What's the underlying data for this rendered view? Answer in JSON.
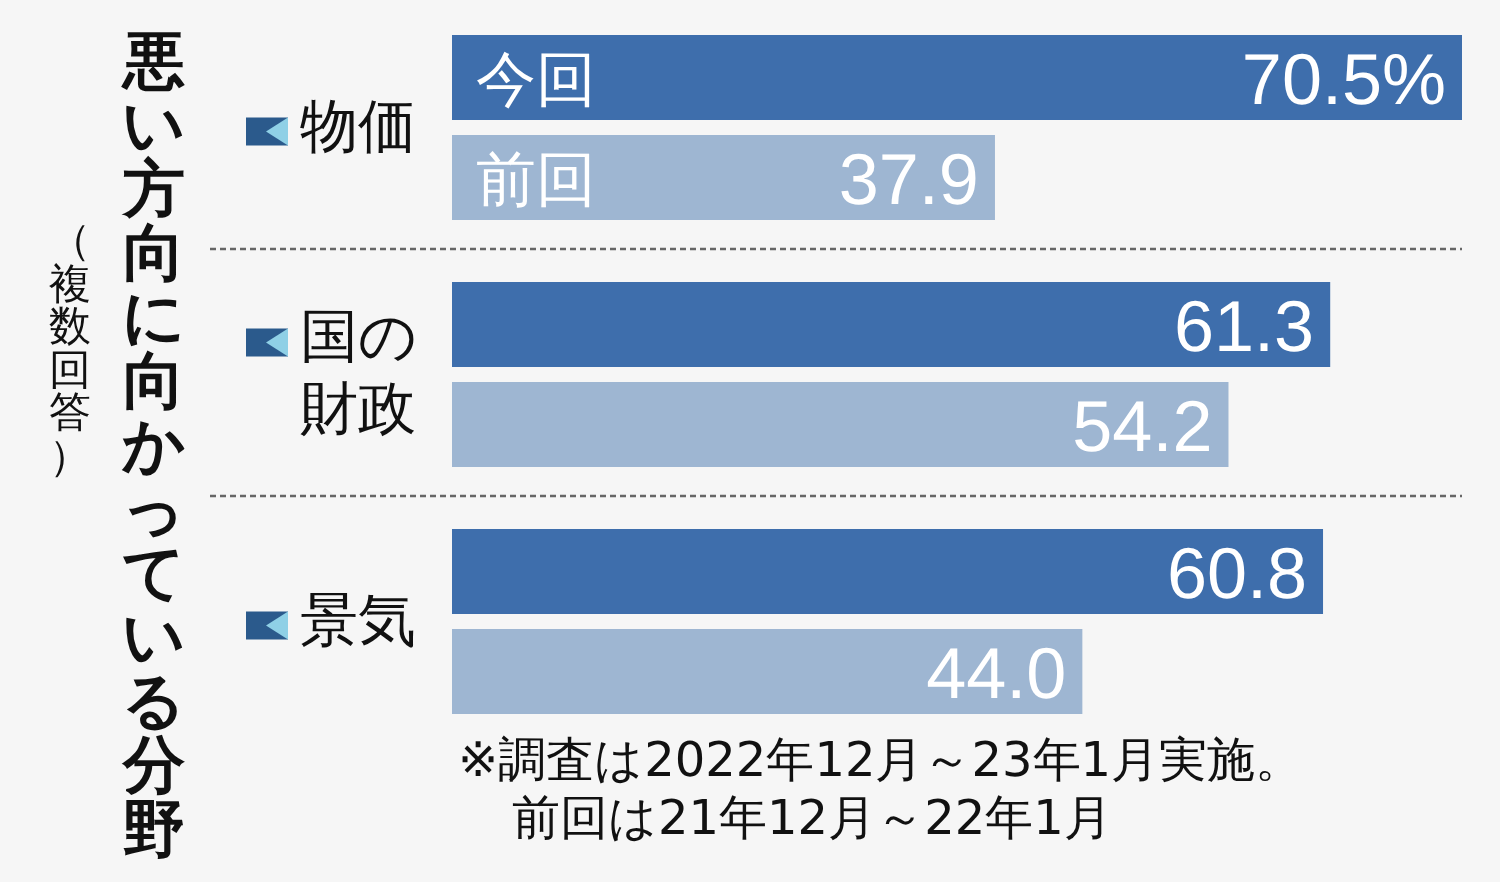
{
  "chart_data": {
    "type": "bar",
    "orientation": "horizontal",
    "title": "悪い方向に向かっている分野",
    "subtitle": "（複数回答）",
    "categories": [
      "物価",
      "国の財政",
      "景気"
    ],
    "series": [
      {
        "name": "今回",
        "color": "#3e6eac",
        "values": [
          70.5,
          61.3,
          60.8
        ],
        "value_labels": [
          "70.5%",
          "61.3",
          "60.8"
        ]
      },
      {
        "name": "前回",
        "color": "#9eb6d2",
        "values": [
          37.9,
          54.2,
          44.0
        ],
        "value_labels": [
          "37.9",
          "54.2",
          "44.0"
        ]
      }
    ],
    "grid": "y",
    "legend": false,
    "tick_labels": "y",
    "annotations": [
      "※調査は2022年12月～23年1月実施。",
      "前回は21年12月～22年1月"
    ]
  }
}
